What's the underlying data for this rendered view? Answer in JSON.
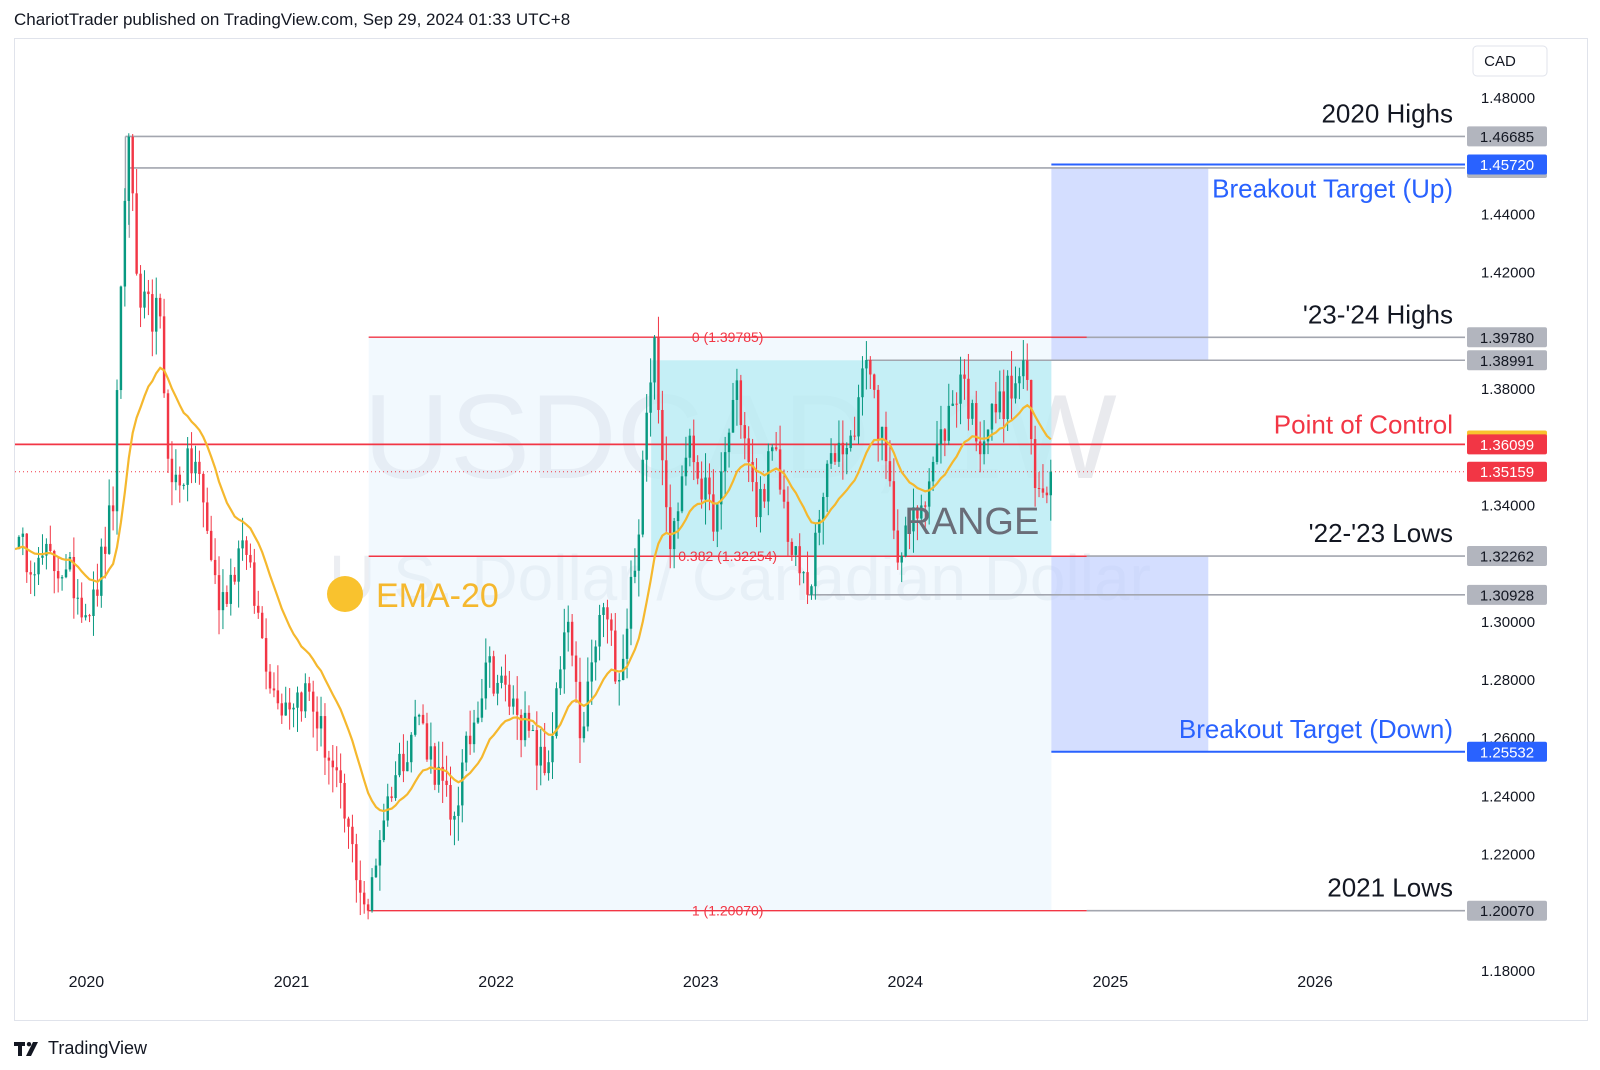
{
  "header": {
    "published": "ChariotTrader published on TradingView.com, Sep 29, 2024 01:33 UTC+8"
  },
  "footer": {
    "brand": "TradingView",
    "logo_icon": "tradingview-logo-icon"
  },
  "colors": {
    "up": "#089981",
    "down": "#f23645",
    "ema": "#f5b82e",
    "fib_line": "#f23645",
    "range_box": "#b2ebf2",
    "fib_box": "#e3f2fd",
    "target_box": "#c5d3ff",
    "target_line": "#2962ff",
    "poc": "#f23645",
    "level_line": "#9598a1"
  },
  "chart_data": {
    "type": "candlestick",
    "symbol": "USDCAD, 1W",
    "watermark_symbol": "USDCAD, 1W",
    "watermark_name": "U.S. Dollar / Canadian Dollar",
    "currency": "CAD",
    "ylim": [
      1.17,
      1.5
    ],
    "x_range": [
      "2019-09-01",
      "2026-10-01"
    ],
    "y_ticks": [
      "1.48000",
      "1.44000",
      "1.42000",
      "1.38000",
      "1.34000",
      "1.30000",
      "1.28000",
      "1.26000",
      "1.24000",
      "1.22000",
      "1.18000"
    ],
    "x_ticks": [
      {
        "label": "2020",
        "date": "2020-01-01"
      },
      {
        "label": "2021",
        "date": "2021-01-01"
      },
      {
        "label": "2022",
        "date": "2022-01-01"
      },
      {
        "label": "2023",
        "date": "2023-01-01"
      },
      {
        "label": "2024",
        "date": "2024-01-01"
      },
      {
        "label": "2025",
        "date": "2025-01-01"
      },
      {
        "label": "2026",
        "date": "2026-01-01"
      }
    ],
    "anchors": [
      {
        "date": "2019-09-01",
        "close": 1.325
      },
      {
        "date": "2019-10-15",
        "close": 1.322
      },
      {
        "date": "2019-12-01",
        "close": 1.318
      },
      {
        "date": "2020-01-15",
        "close": 1.302
      },
      {
        "date": "2020-02-20",
        "close": 1.338
      },
      {
        "date": "2020-03-20",
        "close": 1.4667
      },
      {
        "date": "2020-04-10",
        "close": 1.408
      },
      {
        "date": "2020-05-15",
        "close": 1.405
      },
      {
        "date": "2020-06-05",
        "close": 1.348
      },
      {
        "date": "2020-07-20",
        "close": 1.355
      },
      {
        "date": "2020-09-01",
        "close": 1.304
      },
      {
        "date": "2020-10-10",
        "close": 1.328
      },
      {
        "date": "2020-12-10",
        "close": 1.272
      },
      {
        "date": "2021-02-05",
        "close": 1.276
      },
      {
        "date": "2021-03-20",
        "close": 1.25
      },
      {
        "date": "2021-05-20",
        "close": 1.2007
      },
      {
        "date": "2021-06-25",
        "close": 1.24
      },
      {
        "date": "2021-08-20",
        "close": 1.268
      },
      {
        "date": "2021-10-20",
        "close": 1.232
      },
      {
        "date": "2021-12-20",
        "close": 1.286
      },
      {
        "date": "2022-02-15",
        "close": 1.268
      },
      {
        "date": "2022-04-05",
        "close": 1.248
      },
      {
        "date": "2022-05-15",
        "close": 1.3
      },
      {
        "date": "2022-06-05",
        "close": 1.26
      },
      {
        "date": "2022-07-15",
        "close": 1.305
      },
      {
        "date": "2022-08-15",
        "close": 1.28
      },
      {
        "date": "2022-09-15",
        "close": 1.33
      },
      {
        "date": "2022-10-13",
        "close": 1.3978
      },
      {
        "date": "2022-11-15",
        "close": 1.325
      },
      {
        "date": "2022-12-15",
        "close": 1.364
      },
      {
        "date": "2023-02-01",
        "close": 1.331
      },
      {
        "date": "2023-03-10",
        "close": 1.383
      },
      {
        "date": "2023-04-15",
        "close": 1.336
      },
      {
        "date": "2023-05-15",
        "close": 1.36
      },
      {
        "date": "2023-06-20",
        "close": 1.323
      },
      {
        "date": "2023-07-18",
        "close": 1.3093
      },
      {
        "date": "2023-08-25",
        "close": 1.358
      },
      {
        "date": "2023-10-01",
        "close": 1.364
      },
      {
        "date": "2023-11-01",
        "close": 1.39
      },
      {
        "date": "2023-12-28",
        "close": 1.3226
      },
      {
        "date": "2024-02-01",
        "close": 1.34
      },
      {
        "date": "2024-04-16",
        "close": 1.385
      },
      {
        "date": "2024-05-15",
        "close": 1.362
      },
      {
        "date": "2024-06-15",
        "close": 1.372
      },
      {
        "date": "2024-07-20",
        "close": 1.382
      },
      {
        "date": "2024-08-05",
        "close": 1.3899
      },
      {
        "date": "2024-08-25",
        "close": 1.346
      },
      {
        "date": "2024-09-25",
        "close": 1.3516
      }
    ],
    "ema": {
      "name": "EMA-20",
      "period": 20
    },
    "fib": {
      "start_date": "2021-05-24",
      "end_date": "2024-09-23",
      "line_end_date": "2024-11-25",
      "levels": [
        {
          "label": "0 (1.39785)",
          "value": 1.39785
        },
        {
          "label": "0.382 (1.32254)",
          "value": 1.32254
        },
        {
          "label": "1 (1.20070)",
          "value": 1.2007
        }
      ]
    },
    "range_box": {
      "label": "RANGE",
      "start_date": "2022-10-10",
      "end_date": "2024-09-23",
      "top": 1.3899,
      "bottom": 1.3226
    },
    "target_boxes": [
      {
        "start_date": "2024-09-23",
        "end_date": "2025-06-30",
        "top": 1.456,
        "bottom": 1.3899
      },
      {
        "start_date": "2024-09-23",
        "end_date": "2025-06-30",
        "top": 1.3226,
        "bottom": 1.2553
      }
    ],
    "levels": [
      {
        "label": "2020 Highs",
        "value": 1.46685,
        "start_date": "2020-03-16",
        "axis_label": "1.46685",
        "axis_bg": "#b2b5be"
      },
      {
        "label": "",
        "value": 1.45602,
        "start_date": "2020-03-23",
        "axis_label": "1.45602",
        "axis_bg": "#b2b5be"
      },
      {
        "label": "'23-'24 Highs",
        "value": 1.3978,
        "start_date": "2024-09-23",
        "axis_label": "1.39780",
        "axis_bg": "#b2b5be"
      },
      {
        "label": "",
        "value": 1.38991,
        "start_date": "2023-10-30",
        "axis_label": "1.38991",
        "axis_bg": "#b2b5be"
      },
      {
        "label": "'22-'23 Lows",
        "value": 1.32262,
        "start_date": "2024-11-25",
        "axis_label": "1.32262",
        "axis_bg": "#b2b5be"
      },
      {
        "label": "",
        "value": 1.30928,
        "start_date": "2023-07-17",
        "axis_label": "1.30928",
        "axis_bg": "#b2b5be"
      },
      {
        "label": "2021 Lows",
        "value": 1.2007,
        "start_date": "2024-11-25",
        "axis_label": "1.20070",
        "axis_bg": "#b2b5be"
      }
    ],
    "targets": [
      {
        "label": "Breakout Target (Up)",
        "value": 1.4572,
        "start_date": "2024-09-23",
        "axis_label": "1.45720",
        "axis_bg": "#2962ff"
      },
      {
        "label": "Breakout Target (Down)",
        "value": 1.25532,
        "start_date": "2024-09-23",
        "axis_label": "1.25532",
        "axis_bg": "#2962ff"
      }
    ],
    "poc": {
      "label": "Point of Control",
      "value": 1.36099,
      "axis_label": "1.36099",
      "axis_bg": "#f23645"
    },
    "ema_last": {
      "axis_label": "1.36231",
      "value": 1.36231,
      "axis_bg": "#f9c22e"
    },
    "last_price": {
      "axis_label": "1.35159",
      "value": 1.35159,
      "axis_bg": "#f23645"
    }
  }
}
